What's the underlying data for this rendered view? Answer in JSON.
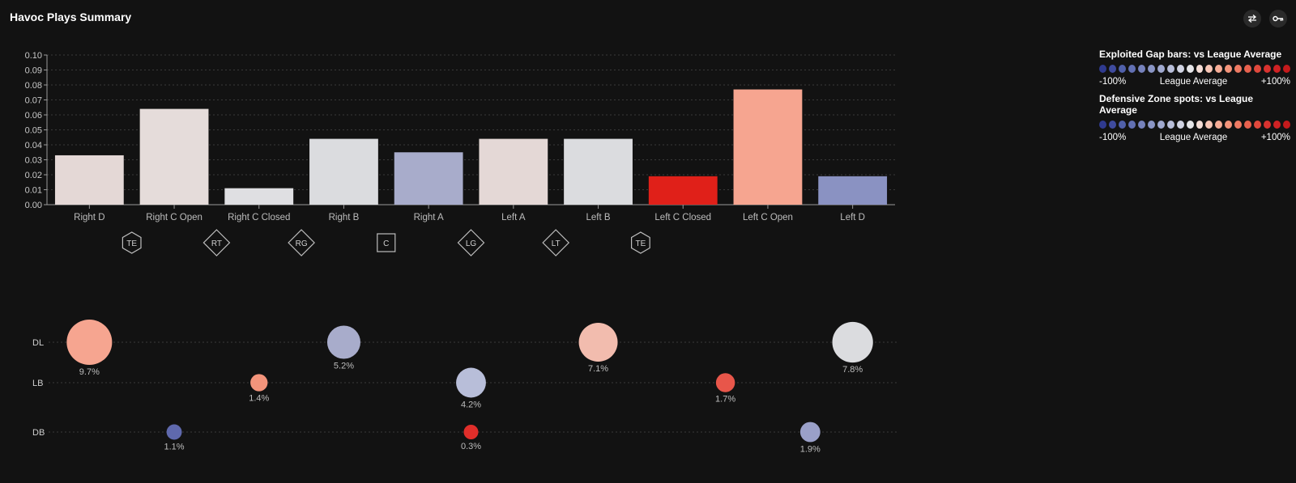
{
  "header": {
    "title": "Havoc Plays Summary"
  },
  "toolbar": {
    "swap_icon": "swap-arrows-icon",
    "key_icon": "key-icon"
  },
  "legend": {
    "gap_title": "Exploited Gap bars: vs League Average",
    "zone_title": "Defensive Zone spots: vs League Average",
    "min_label": "-100%",
    "mid_label": "League Average",
    "max_label": "+100%",
    "scale_colors": [
      "#2f3a8f",
      "#3f4b9e",
      "#5060aa",
      "#6270b3",
      "#7682bc",
      "#8a95c5",
      "#a0a9cf",
      "#b8bed9",
      "#d0d3e2",
      "#e5e5e8",
      "#f4ddd6",
      "#f7c6b6",
      "#f6ad97",
      "#f3947b",
      "#ee7a63",
      "#e8614e",
      "#e0483c",
      "#d8322f",
      "#cf2224",
      "#c41a1c"
    ]
  },
  "chart_data": [
    {
      "type": "bar",
      "title": "",
      "xlabel": "",
      "ylabel": "",
      "ylim": [
        0,
        0.1
      ],
      "yticks": [
        "0.00",
        "0.01",
        "0.02",
        "0.03",
        "0.04",
        "0.05",
        "0.06",
        "0.07",
        "0.08",
        "0.09",
        "0.10"
      ],
      "grid": true,
      "categories": [
        "Right D",
        "Right C Open",
        "Right C Closed",
        "Right B",
        "Right A",
        "Left A",
        "Left B",
        "Left C Closed",
        "Left C Open",
        "Left D"
      ],
      "values": [
        0.033,
        0.064,
        0.011,
        0.044,
        0.035,
        0.044,
        0.044,
        0.019,
        0.077,
        0.019
      ],
      "colors": [
        "#e4d8d6",
        "#e5dcda",
        "#dfdfe2",
        "#dbdcdf",
        "#a8accb",
        "#e4d8d6",
        "#dbdcdf",
        "#e02019",
        "#f6a590",
        "#8a92c2"
      ],
      "positions": [
        {
          "label": "TE",
          "shape": "hexagon"
        },
        {
          "label": "RT",
          "shape": "diamond"
        },
        {
          "label": "RG",
          "shape": "diamond"
        },
        {
          "label": "C",
          "shape": "square"
        },
        {
          "label": "LG",
          "shape": "diamond"
        },
        {
          "label": "LT",
          "shape": "diamond"
        },
        {
          "label": "TE",
          "shape": "hexagon"
        }
      ]
    },
    {
      "type": "scatter",
      "title": "",
      "rows": [
        "DL",
        "LB",
        "DB"
      ],
      "grid": true,
      "points": [
        {
          "row": "DL",
          "col": 0,
          "value": 9.7,
          "label": "9.7%",
          "color": "#f6a590"
        },
        {
          "row": "DL",
          "col": 3,
          "value": 5.2,
          "label": "5.2%",
          "color": "#a8accb"
        },
        {
          "row": "DL",
          "col": 6,
          "value": 7.1,
          "label": "7.1%",
          "color": "#f2bcae"
        },
        {
          "row": "DL",
          "col": 9,
          "value": 7.8,
          "label": "7.8%",
          "color": "#dbdcdf"
        },
        {
          "row": "LB",
          "col": 2,
          "value": 1.4,
          "label": "1.4%",
          "color": "#f3947b"
        },
        {
          "row": "LB",
          "col": 4.5,
          "value": 4.2,
          "label": "4.2%",
          "color": "#b8bed9"
        },
        {
          "row": "LB",
          "col": 7.5,
          "value": 1.7,
          "label": "1.7%",
          "color": "#e8564a"
        },
        {
          "row": "DB",
          "col": 1,
          "value": 1.1,
          "label": "1.1%",
          "color": "#5f69ad"
        },
        {
          "row": "DB",
          "col": 4.5,
          "value": 0.3,
          "label": "0.3%",
          "color": "#e02e2a"
        },
        {
          "row": "DB",
          "col": 8.5,
          "value": 1.9,
          "label": "1.9%",
          "color": "#9aa0c8"
        }
      ]
    }
  ]
}
